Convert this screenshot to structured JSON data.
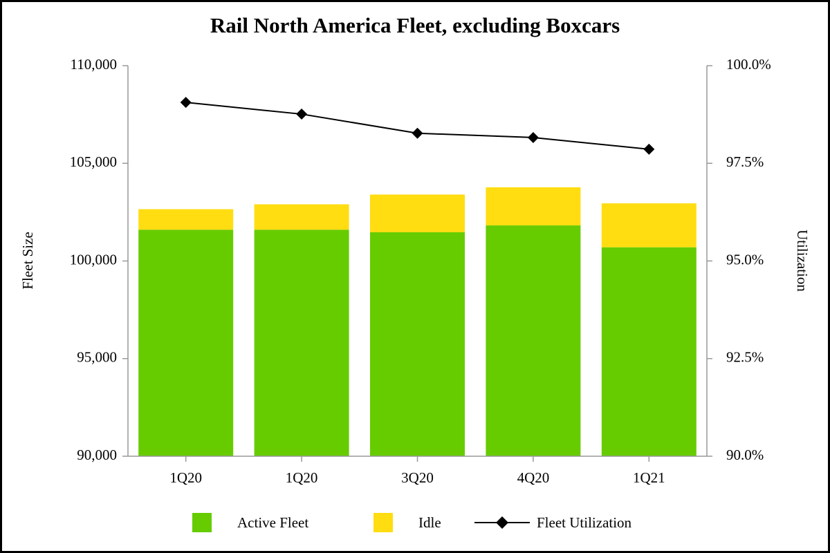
{
  "chart_data": {
    "type": "bar",
    "stacked": true,
    "title": "Rail North America Fleet, excluding Boxcars",
    "ylabel": "Fleet Size",
    "y2label": "Utilization",
    "categories": [
      "1Q20",
      "1Q20",
      "3Q20",
      "4Q20",
      "1Q21"
    ],
    "series": [
      {
        "name": "Active Fleet",
        "type": "bar",
        "color": "#66cc00",
        "values": [
          101600,
          101600,
          101470,
          101820,
          100700
        ]
      },
      {
        "name": "Idle",
        "type": "bar",
        "color": "#ffdd11",
        "values": [
          1050,
          1300,
          1930,
          1950,
          2250
        ]
      },
      {
        "name": "Fleet Utilization",
        "type": "line",
        "axis": "y2",
        "color": "#000000",
        "values": [
          99.06,
          98.76,
          98.27,
          98.16,
          97.86
        ]
      }
    ],
    "ylim": [
      90000,
      110000
    ],
    "yticks": [
      {
        "value": 90000,
        "label": "90,000"
      },
      {
        "value": 95000,
        "label": "95,000"
      },
      {
        "value": 100000,
        "label": "100,000"
      },
      {
        "value": 105000,
        "label": "105,000"
      },
      {
        "value": 110000,
        "label": "110,000"
      }
    ],
    "y2lim": [
      90,
      100
    ],
    "y2ticks": [
      {
        "value": 90,
        "label": "90.0%"
      },
      {
        "value": 92.5,
        "label": "92.5%"
      },
      {
        "value": 95,
        "label": "95.0%"
      },
      {
        "value": 97.5,
        "label": "97.5%"
      },
      {
        "value": 100,
        "label": "100.0%"
      }
    ],
    "legend": "bottom"
  }
}
